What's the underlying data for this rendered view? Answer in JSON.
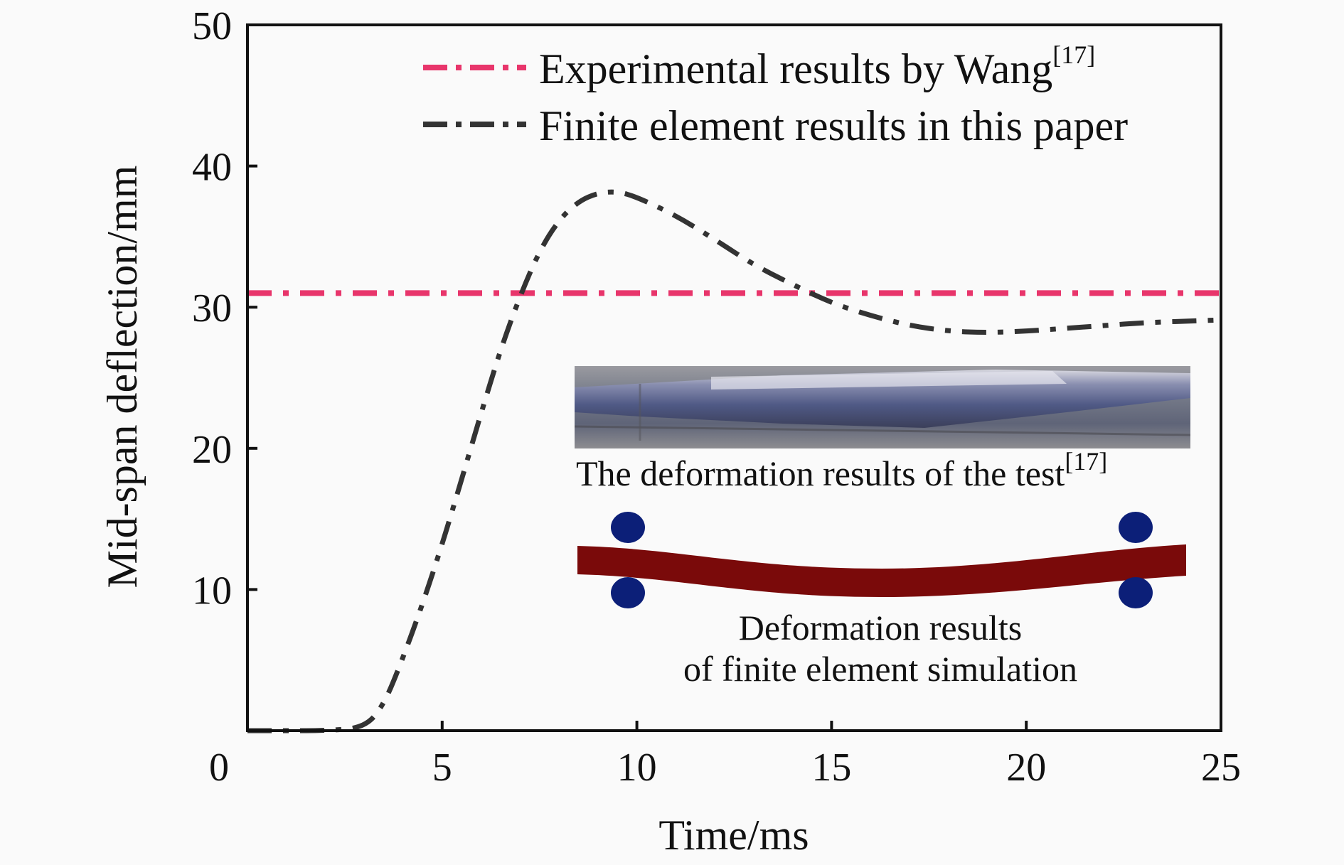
{
  "chart_data": {
    "type": "line",
    "xlabel": "Time/ms",
    "ylabel": "Mid-span deflection/mm",
    "xlim": [
      0,
      25
    ],
    "ylim": [
      0,
      50
    ],
    "x_ticks": [
      "0",
      "5",
      "10",
      "15",
      "20",
      "25"
    ],
    "y_ticks": [
      "10",
      "20",
      "30",
      "40",
      "50"
    ],
    "legend_position": "top-right",
    "series": [
      {
        "name": "Experimental results by Wang",
        "name_sup": "[17]",
        "color": "#e8356b",
        "style": "dash-dot",
        "x": [
          0,
          25
        ],
        "y": [
          31,
          31
        ]
      },
      {
        "name": "Finite element results in this paper",
        "color": "#333333",
        "style": "dash-dot",
        "x": [
          0,
          1,
          2,
          3,
          3.5,
          4,
          4.5,
          5,
          5.5,
          6,
          6.5,
          7,
          7.5,
          8,
          8.5,
          9,
          9.5,
          10,
          11,
          12,
          13,
          14,
          15,
          16,
          17,
          18,
          19,
          20,
          21,
          22,
          23,
          24,
          25
        ],
        "y": [
          0,
          0,
          0,
          0.2,
          1.8,
          5.2,
          9.0,
          13.2,
          17.8,
          22.5,
          27.0,
          30.8,
          34.0,
          36.2,
          37.5,
          38.1,
          38.2,
          37.8,
          36.5,
          34.8,
          33.0,
          31.6,
          30.3,
          29.4,
          28.7,
          28.3,
          28.2,
          28.3,
          28.5,
          28.7,
          28.9,
          29.0,
          29.1
        ]
      }
    ],
    "inset": {
      "test_caption": "The deformation results of the test",
      "test_caption_sup": "[17]",
      "fe_caption_line1": "Deformation results",
      "fe_caption_line2": "of finite element simulation",
      "beam_color": "#7a0a0a",
      "support_color": "#0c1f78"
    }
  }
}
